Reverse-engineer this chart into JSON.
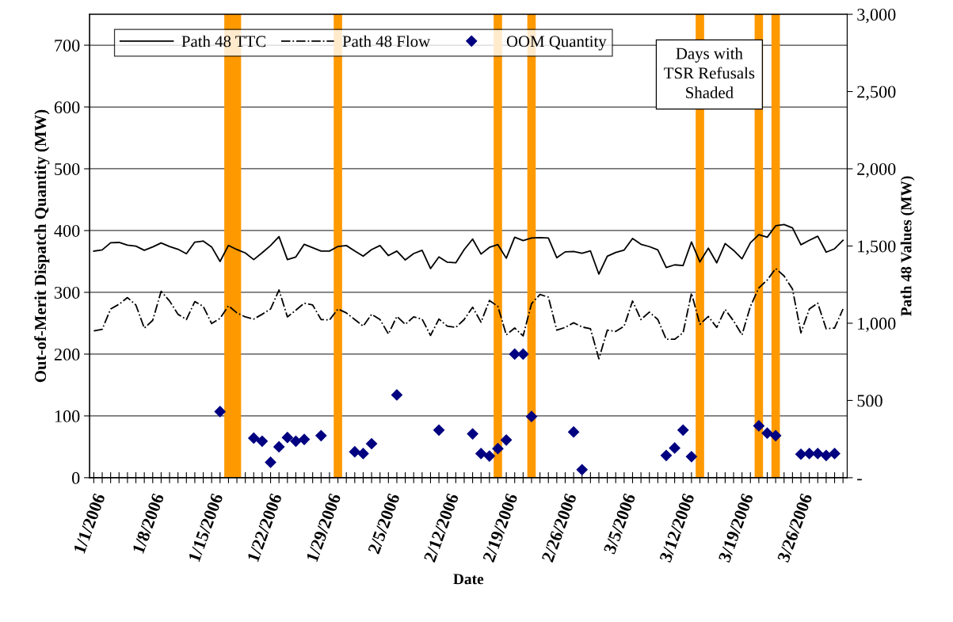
{
  "chart_data": {
    "type": "line",
    "xlabel": "Date",
    "ylabel": "Out-of-Merit Dispatch Quantity (MW)",
    "y2label": "Path 48 Values (MW)",
    "x": [
      "2006-01-01",
      "2006-01-02",
      "2006-01-03",
      "2006-01-04",
      "2006-01-05",
      "2006-01-06",
      "2006-01-07",
      "2006-01-08",
      "2006-01-09",
      "2006-01-10",
      "2006-01-11",
      "2006-01-12",
      "2006-01-13",
      "2006-01-14",
      "2006-01-15",
      "2006-01-16",
      "2006-01-17",
      "2006-01-18",
      "2006-01-19",
      "2006-01-20",
      "2006-01-21",
      "2006-01-22",
      "2006-01-23",
      "2006-01-24",
      "2006-01-25",
      "2006-01-26",
      "2006-01-27",
      "2006-01-28",
      "2006-01-29",
      "2006-01-30",
      "2006-01-31",
      "2006-02-01",
      "2006-02-02",
      "2006-02-03",
      "2006-02-04",
      "2006-02-05",
      "2006-02-06",
      "2006-02-07",
      "2006-02-08",
      "2006-02-09",
      "2006-02-10",
      "2006-02-11",
      "2006-02-12",
      "2006-02-13",
      "2006-02-14",
      "2006-02-15",
      "2006-02-16",
      "2006-02-17",
      "2006-02-18",
      "2006-02-19",
      "2006-02-20",
      "2006-02-21",
      "2006-02-22",
      "2006-02-23",
      "2006-02-24",
      "2006-02-25",
      "2006-02-26",
      "2006-02-27",
      "2006-02-28",
      "2006-03-01",
      "2006-03-02",
      "2006-03-03",
      "2006-03-04",
      "2006-03-05",
      "2006-03-06",
      "2006-03-07",
      "2006-03-08",
      "2006-03-09",
      "2006-03-10",
      "2006-03-11",
      "2006-03-12",
      "2006-03-13",
      "2006-03-14",
      "2006-03-15",
      "2006-03-16",
      "2006-03-17",
      "2006-03-18",
      "2006-03-19",
      "2006-03-20",
      "2006-03-21",
      "2006-03-22",
      "2006-03-23",
      "2006-03-24",
      "2006-03-25",
      "2006-03-26",
      "2006-03-27",
      "2006-03-28",
      "2006-03-29",
      "2006-03-30",
      "2006-03-31"
    ],
    "series": [
      {
        "name": "Path 48 TTC",
        "type": "line",
        "axis": "y2",
        "color": "#000000",
        "line_style": "solid",
        "marker": "none",
        "values": [
          1467,
          1475,
          1521,
          1523,
          1506,
          1499,
          1472,
          1494,
          1520,
          1497,
          1479,
          1450,
          1525,
          1532,
          1494,
          1400,
          1504,
          1477,
          1455,
          1412,
          1456,
          1503,
          1561,
          1412,
          1429,
          1511,
          1489,
          1467,
          1467,
          1497,
          1503,
          1468,
          1434,
          1477,
          1503,
          1438,
          1467,
          1410,
          1451,
          1472,
          1354,
          1429,
          1395,
          1391,
          1477,
          1545,
          1448,
          1491,
          1509,
          1421,
          1557,
          1535,
          1552,
          1554,
          1552,
          1424,
          1462,
          1465,
          1453,
          1468,
          1318,
          1434,
          1458,
          1474,
          1549,
          1511,
          1496,
          1475,
          1361,
          1378,
          1373,
          1526,
          1397,
          1486,
          1391,
          1516,
          1472,
          1417,
          1521,
          1574,
          1557,
          1631,
          1639,
          1617,
          1508,
          1537,
          1563,
          1460,
          1482,
          1537
        ]
      },
      {
        "name": "Path 48 Flow",
        "type": "line",
        "axis": "y2",
        "color": "#000000",
        "line_style": "dashdot",
        "marker": "none",
        "values": [
          950,
          961,
          1092,
          1123,
          1166,
          1118,
          968,
          1019,
          1207,
          1144,
          1058,
          1024,
          1140,
          1109,
          998,
          1032,
          1113,
          1067,
          1041,
          1027,
          1058,
          1092,
          1215,
          1041,
          1084,
          1130,
          1118,
          1024,
          1021,
          1092,
          1067,
          1024,
          981,
          1058,
          1024,
          930,
          1044,
          993,
          1041,
          1027,
          921,
          1027,
          981,
          973,
          1024,
          1104,
          1007,
          1147,
          1109,
          925,
          969,
          918,
          1127,
          1186,
          1169,
          955,
          973,
          1003,
          976,
          964,
          770,
          955,
          947,
          981,
          1144,
          1024,
          1072,
          1024,
          896,
          896,
          938,
          1195,
          993,
          1044,
          973,
          1089,
          1015,
          925,
          1109,
          1229,
          1280,
          1354,
          1306,
          1221,
          938,
          1092,
          1130,
          964,
          969,
          1092
        ]
      },
      {
        "name": "OOM Quantity",
        "type": "scatter",
        "axis": "y",
        "color": "#000080",
        "marker": "diamond",
        "x": [
          "2006-01-16",
          "2006-01-20",
          "2006-01-21",
          "2006-01-22",
          "2006-01-23",
          "2006-01-24",
          "2006-01-25",
          "2006-01-26",
          "2006-01-28",
          "2006-02-01",
          "2006-02-02",
          "2006-02-03",
          "2006-02-06",
          "2006-02-11",
          "2006-02-15",
          "2006-02-16",
          "2006-02-17",
          "2006-02-18",
          "2006-02-19",
          "2006-02-20",
          "2006-02-21",
          "2006-02-22",
          "2006-02-27",
          "2006-02-28",
          "2006-03-10",
          "2006-03-11",
          "2006-03-12",
          "2006-03-13",
          "2006-03-21",
          "2006-03-22",
          "2006-03-23",
          "2006-03-26",
          "2006-03-27",
          "2006-03-28",
          "2006-03-29",
          "2006-03-30"
        ],
        "values": [
          107,
          64,
          59,
          25,
          50,
          65,
          59,
          62,
          68,
          42,
          39,
          55,
          134,
          77,
          71,
          39,
          35,
          47,
          61,
          200,
          200,
          99,
          74,
          13,
          36,
          48,
          77,
          34,
          84,
          72,
          68,
          38,
          39,
          39,
          36,
          39
        ]
      }
    ],
    "xlim": [
      "2005-12-31T12:00",
      "2006-03-31T12:00"
    ],
    "xticks": [
      {
        "value": "2006-01-01",
        "label": "1/1/2006"
      },
      {
        "value": "2006-01-08",
        "label": "1/8/2006"
      },
      {
        "value": "2006-01-15",
        "label": "1/15/2006"
      },
      {
        "value": "2006-01-22",
        "label": "1/22/2006"
      },
      {
        "value": "2006-01-29",
        "label": "1/29/2006"
      },
      {
        "value": "2006-02-05",
        "label": "2/5/2006"
      },
      {
        "value": "2006-02-12",
        "label": "2/12/2006"
      },
      {
        "value": "2006-02-19",
        "label": "2/19/2006"
      },
      {
        "value": "2006-02-26",
        "label": "2/26/2006"
      },
      {
        "value": "2006-03-05",
        "label": "3/5/2006"
      },
      {
        "value": "2006-03-12",
        "label": "3/12/2006"
      },
      {
        "value": "2006-03-19",
        "label": "3/19/2006"
      },
      {
        "value": "2006-03-26",
        "label": "3/26/2006"
      },
      {
        "value": "2006-01-02",
        "label": null
      },
      {
        "value": "2006-01-03",
        "label": null
      },
      {
        "value": "2006-01-04",
        "label": null
      },
      {
        "value": "2006-01-05",
        "label": null
      },
      {
        "value": "2006-01-06",
        "label": null
      },
      {
        "value": "2006-01-07",
        "label": null
      },
      {
        "value": "2006-01-09",
        "label": null
      },
      {
        "value": "2006-01-10",
        "label": null
      },
      {
        "value": "2006-01-11",
        "label": null
      },
      {
        "value": "2006-01-12",
        "label": null
      },
      {
        "value": "2006-01-13",
        "label": null
      },
      {
        "value": "2006-01-14",
        "label": null
      },
      {
        "value": "2006-01-16",
        "label": null
      },
      {
        "value": "2006-01-17",
        "label": null
      },
      {
        "value": "2006-01-18",
        "label": null
      },
      {
        "value": "2006-01-19",
        "label": null
      },
      {
        "value": "2006-01-20",
        "label": null
      },
      {
        "value": "2006-01-21",
        "label": null
      },
      {
        "value": "2006-01-23",
        "label": null
      },
      {
        "value": "2006-01-24",
        "label": null
      },
      {
        "value": "2006-01-25",
        "label": null
      },
      {
        "value": "2006-01-26",
        "label": null
      },
      {
        "value": "2006-01-27",
        "label": null
      },
      {
        "value": "2006-01-28",
        "label": null
      },
      {
        "value": "2006-01-30",
        "label": null
      },
      {
        "value": "2006-01-31",
        "label": null
      },
      {
        "value": "2006-02-01",
        "label": null
      },
      {
        "value": "2006-02-02",
        "label": null
      },
      {
        "value": "2006-02-03",
        "label": null
      },
      {
        "value": "2006-02-04",
        "label": null
      },
      {
        "value": "2006-02-06",
        "label": null
      },
      {
        "value": "2006-02-07",
        "label": null
      },
      {
        "value": "2006-02-08",
        "label": null
      },
      {
        "value": "2006-02-09",
        "label": null
      },
      {
        "value": "2006-02-10",
        "label": null
      },
      {
        "value": "2006-02-11",
        "label": null
      },
      {
        "value": "2006-02-13",
        "label": null
      },
      {
        "value": "2006-02-14",
        "label": null
      },
      {
        "value": "2006-02-15",
        "label": null
      },
      {
        "value": "2006-02-16",
        "label": null
      },
      {
        "value": "2006-02-17",
        "label": null
      },
      {
        "value": "2006-02-18",
        "label": null
      },
      {
        "value": "2006-02-20",
        "label": null
      },
      {
        "value": "2006-02-21",
        "label": null
      },
      {
        "value": "2006-02-22",
        "label": null
      },
      {
        "value": "2006-02-23",
        "label": null
      },
      {
        "value": "2006-02-24",
        "label": null
      },
      {
        "value": "2006-02-25",
        "label": null
      },
      {
        "value": "2006-02-27",
        "label": null
      },
      {
        "value": "2006-02-28",
        "label": null
      },
      {
        "value": "2006-03-01",
        "label": null
      },
      {
        "value": "2006-03-02",
        "label": null
      },
      {
        "value": "2006-03-03",
        "label": null
      },
      {
        "value": "2006-03-04",
        "label": null
      },
      {
        "value": "2006-03-06",
        "label": null
      },
      {
        "value": "2006-03-07",
        "label": null
      },
      {
        "value": "2006-03-08",
        "label": null
      },
      {
        "value": "2006-03-09",
        "label": null
      },
      {
        "value": "2006-03-10",
        "label": null
      },
      {
        "value": "2006-03-11",
        "label": null
      },
      {
        "value": "2006-03-13",
        "label": null
      },
      {
        "value": "2006-03-14",
        "label": null
      },
      {
        "value": "2006-03-15",
        "label": null
      },
      {
        "value": "2006-03-16",
        "label": null
      },
      {
        "value": "2006-03-17",
        "label": null
      },
      {
        "value": "2006-03-18",
        "label": null
      },
      {
        "value": "2006-03-20",
        "label": null
      },
      {
        "value": "2006-03-21",
        "label": null
      },
      {
        "value": "2006-03-22",
        "label": null
      },
      {
        "value": "2006-03-23",
        "label": null
      },
      {
        "value": "2006-03-24",
        "label": null
      },
      {
        "value": "2006-03-25",
        "label": null
      },
      {
        "value": "2006-03-27",
        "label": null
      },
      {
        "value": "2006-03-28",
        "label": null
      },
      {
        "value": "2006-03-29",
        "label": null
      },
      {
        "value": "2006-03-30",
        "label": null
      },
      {
        "value": "2006-03-31",
        "label": null
      }
    ],
    "ylim": [
      0,
      750
    ],
    "yticks": [
      0,
      100,
      200,
      300,
      400,
      500,
      600,
      700
    ],
    "y2lim": [
      0,
      3000
    ],
    "y2ticks": [
      {
        "value": 0,
        "label": "-"
      },
      500,
      {
        "value": 1000,
        "label": "1,000"
      },
      {
        "value": 1500,
        "label": "1,500"
      },
      {
        "value": 2000,
        "label": "2,000"
      },
      {
        "value": 2500,
        "label": "2,500"
      },
      {
        "value": 3000,
        "label": "3,000"
      }
    ],
    "bands": [
      {
        "axis": "x",
        "from": "2006-01-16T12:00",
        "to": "2006-01-18T12:00",
        "color": "#ff9900"
      },
      {
        "axis": "x",
        "from": "2006-01-29T12:00",
        "to": "2006-01-30T12:00",
        "color": "#ff9900"
      },
      {
        "axis": "x",
        "from": "2006-02-17T12:00",
        "to": "2006-02-18T12:00",
        "color": "#ff9900"
      },
      {
        "axis": "x",
        "from": "2006-02-21T12:00",
        "to": "2006-02-22T12:00",
        "color": "#ff9900"
      },
      {
        "axis": "x",
        "from": "2006-03-13T12:00",
        "to": "2006-03-14T12:00",
        "color": "#ff9900"
      },
      {
        "axis": "x",
        "from": "2006-03-20T12:00",
        "to": "2006-03-21T12:00",
        "color": "#ff9900"
      },
      {
        "axis": "x",
        "from": "2006-03-22T12:00",
        "to": "2006-03-23T12:00",
        "color": "#ff9900"
      }
    ],
    "annotations": [
      "Days with\nTSR Refusals\nShaded"
    ],
    "grid": "y",
    "legend": "top"
  }
}
